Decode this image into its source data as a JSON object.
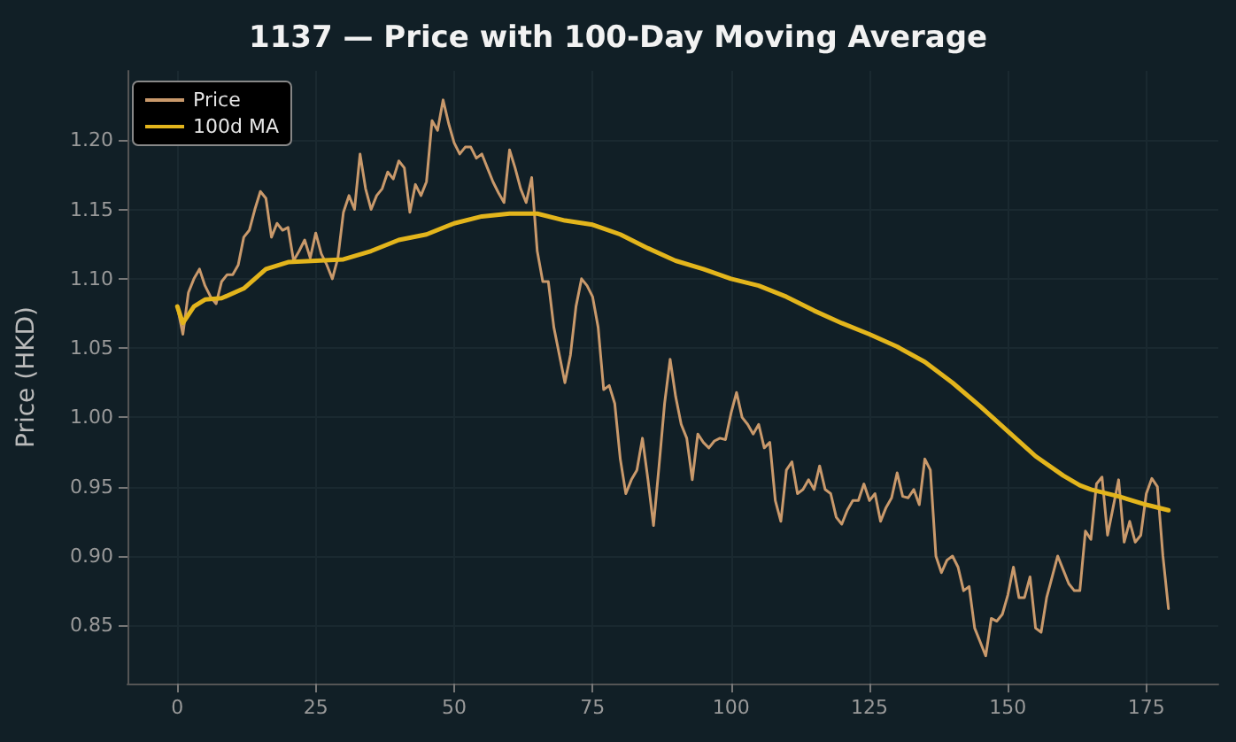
{
  "chart_data": {
    "type": "line",
    "title": "1137 — Price with 100-Day Moving Average",
    "ylabel": "Price (HKD)",
    "xlim": [
      -9,
      188
    ],
    "xticks": [
      0,
      25,
      50,
      75,
      100,
      125,
      150,
      175
    ],
    "ylim": [
      0.808,
      1.25
    ],
    "yticks": [
      0.85,
      {
        "value": 0.9,
        "label": "0.90"
      },
      0.95,
      {
        "value": 1.0,
        "label": "1.00"
      },
      1.05,
      {
        "value": 1.1,
        "label": "1.10"
      },
      1.15,
      {
        "value": 1.2,
        "label": "1.20"
      }
    ],
    "grid": true,
    "legend": "top left",
    "marker": "none",
    "line_style": "solid",
    "series": [
      {
        "name": "Price",
        "color": "#c9996b",
        "x": [
          0,
          1,
          2,
          3,
          4,
          5,
          6,
          7,
          8,
          9,
          10,
          11,
          12,
          13,
          14,
          15,
          16,
          17,
          18,
          19,
          20,
          21,
          22,
          23,
          24,
          25,
          26,
          27,
          28,
          29,
          30,
          31,
          32,
          33,
          34,
          35,
          36,
          37,
          38,
          39,
          40,
          41,
          42,
          43,
          44,
          45,
          46,
          47,
          48,
          49,
          50,
          51,
          52,
          53,
          54,
          55,
          56,
          57,
          58,
          59,
          60,
          61,
          62,
          63,
          64,
          65,
          66,
          67,
          68,
          69,
          70,
          71,
          72,
          73,
          74,
          75,
          76,
          77,
          78,
          79,
          80,
          81,
          82,
          83,
          84,
          85,
          86,
          87,
          88,
          89,
          90,
          91,
          92,
          93,
          94,
          95,
          96,
          97,
          98,
          99,
          100,
          101,
          102,
          103,
          104,
          105,
          106,
          107,
          108,
          109,
          110,
          111,
          112,
          113,
          114,
          115,
          116,
          117,
          118,
          119,
          120,
          121,
          122,
          123,
          124,
          125,
          126,
          127,
          128,
          129,
          130,
          131,
          132,
          133,
          134,
          135,
          136,
          137,
          138,
          139,
          140,
          141,
          142,
          143,
          144,
          145,
          146,
          147,
          148,
          149,
          150,
          151,
          152,
          153,
          154,
          155,
          156,
          157,
          158,
          159,
          160,
          161,
          162,
          163,
          164,
          165,
          166,
          167,
          168,
          169,
          170,
          171,
          172,
          173,
          174,
          175,
          176,
          177,
          178,
          179
        ],
        "values": [
          1.08,
          1.06,
          1.09,
          1.1,
          1.107,
          1.095,
          1.087,
          1.082,
          1.098,
          1.103,
          1.103,
          1.11,
          1.13,
          1.135,
          1.15,
          1.163,
          1.158,
          1.13,
          1.14,
          1.135,
          1.137,
          1.113,
          1.12,
          1.128,
          1.115,
          1.133,
          1.118,
          1.11,
          1.1,
          1.115,
          1.148,
          1.16,
          1.15,
          1.19,
          1.165,
          1.15,
          1.16,
          1.165,
          1.177,
          1.172,
          1.185,
          1.18,
          1.148,
          1.168,
          1.16,
          1.17,
          1.214,
          1.207,
          1.229,
          1.212,
          1.198,
          1.19,
          1.195,
          1.195,
          1.187,
          1.19,
          1.18,
          1.17,
          1.162,
          1.155,
          1.193,
          1.18,
          1.165,
          1.155,
          1.173,
          1.12,
          1.098,
          1.098,
          1.065,
          1.045,
          1.025,
          1.045,
          1.08,
          1.1,
          1.095,
          1.087,
          1.065,
          1.02,
          1.023,
          1.01,
          0.97,
          0.945,
          0.955,
          0.962,
          0.985,
          0.955,
          0.922,
          0.965,
          1.01,
          1.042,
          1.015,
          0.995,
          0.985,
          0.955,
          0.988,
          0.982,
          0.978,
          0.983,
          0.985,
          0.984,
          1.003,
          1.018,
          1.0,
          0.995,
          0.988,
          0.995,
          0.978,
          0.982,
          0.94,
          0.925,
          0.962,
          0.968,
          0.945,
          0.948,
          0.955,
          0.948,
          0.965,
          0.948,
          0.945,
          0.928,
          0.923,
          0.933,
          0.94,
          0.94,
          0.952,
          0.94,
          0.945,
          0.925,
          0.935,
          0.942,
          0.96,
          0.943,
          0.942,
          0.948,
          0.937,
          0.97,
          0.962,
          0.9,
          0.888,
          0.897,
          0.9,
          0.892,
          0.875,
          0.878,
          0.848,
          0.838,
          0.828,
          0.855,
          0.853,
          0.858,
          0.872,
          0.892,
          0.87,
          0.87,
          0.885,
          0.848,
          0.845,
          0.87,
          0.885,
          0.9,
          0.89,
          0.88,
          0.875,
          0.875,
          0.918,
          0.912,
          0.952,
          0.957,
          0.915,
          0.935,
          0.955,
          0.91,
          0.925,
          0.91,
          0.915,
          0.945,
          0.956,
          0.95,
          0.9,
          0.862
        ]
      },
      {
        "name": "100d MA",
        "color": "#e3b51c",
        "x": [
          0,
          1,
          3,
          5,
          8,
          12,
          16,
          20,
          25,
          30,
          35,
          40,
          45,
          50,
          55,
          60,
          65,
          70,
          75,
          80,
          85,
          90,
          95,
          100,
          105,
          110,
          115,
          120,
          125,
          130,
          135,
          140,
          145,
          150,
          155,
          160,
          163,
          165,
          170,
          175,
          179
        ],
        "values": [
          1.08,
          1.068,
          1.08,
          1.085,
          1.086,
          1.093,
          1.107,
          1.112,
          1.113,
          1.114,
          1.12,
          1.128,
          1.132,
          1.14,
          1.145,
          1.147,
          1.147,
          1.142,
          1.139,
          1.132,
          1.122,
          1.113,
          1.107,
          1.1,
          1.095,
          1.087,
          1.077,
          1.068,
          1.06,
          1.051,
          1.04,
          1.025,
          1.008,
          0.99,
          0.972,
          0.958,
          0.951,
          0.948,
          0.943,
          0.937,
          0.933
        ]
      }
    ]
  }
}
